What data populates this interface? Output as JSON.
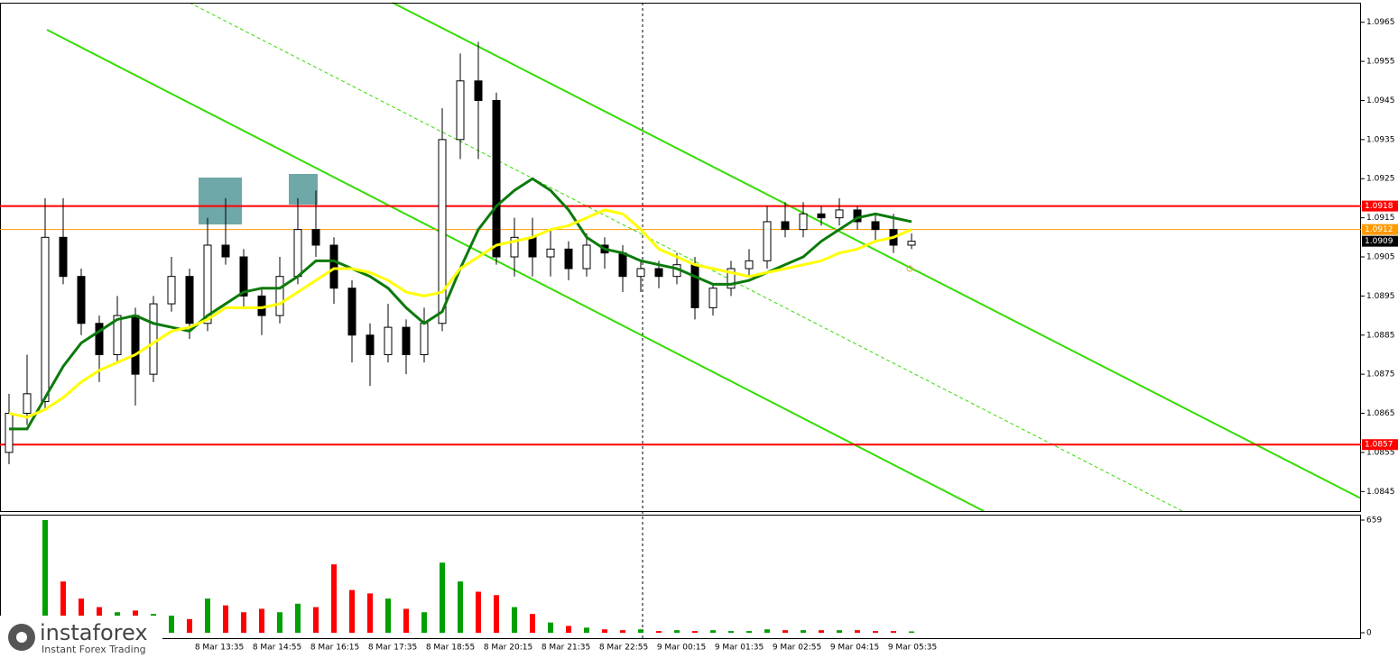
{
  "chart_data": {
    "type": "candlestick",
    "open": [
      1.0855,
      1.0865,
      1.0868,
      1.091,
      1.09,
      1.0888,
      1.088,
      1.089,
      1.0875,
      1.0893,
      1.09,
      1.0888,
      1.0908,
      1.0905,
      1.0895,
      1.089,
      1.09,
      1.0912,
      1.0908,
      1.0897,
      1.0885,
      1.088,
      1.0887,
      1.088,
      1.0888,
      1.0935,
      1.095,
      1.0945,
      1.0905,
      1.091,
      1.0905,
      1.0907,
      1.0902,
      1.0908,
      1.0906,
      1.09,
      1.0902,
      1.09,
      1.0903,
      1.0892,
      1.0897,
      1.0902,
      1.0904,
      1.0914,
      1.0912,
      1.0916,
      1.0915,
      1.0917,
      1.0914,
      1.0912,
      1.0908
    ],
    "high": [
      1.087,
      1.088,
      1.092,
      1.092,
      1.0902,
      1.089,
      1.0895,
      1.0892,
      1.0895,
      1.0905,
      1.0902,
      1.0915,
      1.092,
      1.0907,
      1.0897,
      1.0905,
      1.092,
      1.0922,
      1.091,
      1.0899,
      1.0888,
      1.0893,
      1.0889,
      1.0892,
      1.0943,
      1.0957,
      1.096,
      1.0947,
      1.0915,
      1.0915,
      1.0912,
      1.0909,
      1.0911,
      1.091,
      1.0908,
      1.0904,
      1.0904,
      1.0906,
      1.0905,
      1.0898,
      1.0904,
      1.0907,
      1.0918,
      1.0919,
      1.0919,
      1.0918,
      1.092,
      1.0918,
      1.0916,
      1.0916,
      1.0911
    ],
    "low": [
      1.0852,
      1.0862,
      1.0866,
      1.0898,
      1.0885,
      1.0873,
      1.0878,
      1.0867,
      1.0873,
      1.0891,
      1.0884,
      1.0886,
      1.0903,
      1.0892,
      1.0885,
      1.0888,
      1.0898,
      1.0905,
      1.0893,
      1.0878,
      1.0872,
      1.0878,
      1.0875,
      1.0878,
      1.0886,
      1.093,
      1.093,
      1.0903,
      1.09,
      1.09,
      1.09,
      1.0899,
      1.09,
      1.0902,
      1.0896,
      1.0896,
      1.0897,
      1.0898,
      1.0889,
      1.089,
      1.0895,
      1.09,
      1.0902,
      1.091,
      1.091,
      1.0913,
      1.0913,
      1.0912,
      1.0909,
      1.0906,
      1.0907
    ],
    "close": [
      1.0865,
      1.087,
      1.091,
      1.09,
      1.0888,
      1.088,
      1.089,
      1.0875,
      1.0893,
      1.09,
      1.0888,
      1.0908,
      1.0905,
      1.0895,
      1.089,
      1.09,
      1.0912,
      1.0908,
      1.0897,
      1.0885,
      1.088,
      1.0887,
      1.088,
      1.0888,
      1.0935,
      1.095,
      1.0945,
      1.0905,
      1.091,
      1.0905,
      1.0907,
      1.0902,
      1.0908,
      1.0906,
      1.09,
      1.0902,
      1.09,
      1.0903,
      1.0892,
      1.0897,
      1.0902,
      1.0904,
      1.0914,
      1.0912,
      1.0916,
      1.0915,
      1.0917,
      1.0914,
      1.0912,
      1.0908,
      1.0909
    ],
    "overlays": [
      {
        "color": "#0b7a0b",
        "values": [
          1.0861,
          1.0861,
          1.0869,
          1.0877,
          1.0883,
          1.0886,
          1.0889,
          1.089,
          1.0888,
          1.0887,
          1.0886,
          1.089,
          1.0893,
          1.0896,
          1.0897,
          1.0897,
          1.09,
          1.0904,
          1.0904,
          1.0902,
          1.09,
          1.0897,
          1.0892,
          1.0888,
          1.0891,
          1.0902,
          1.0912,
          1.0918,
          1.0922,
          1.0925,
          1.0922,
          1.0917,
          1.091,
          1.0907,
          1.0906,
          1.0904,
          1.0903,
          1.0902,
          1.09,
          1.0898,
          1.0898,
          1.0899,
          1.0901,
          1.0903,
          1.0905,
          1.0909,
          1.0912,
          1.0915,
          1.0916,
          1.0915,
          1.0914
        ]
      },
      {
        "color": "#ffff00",
        "values": [
          1.0865,
          1.0864,
          1.0866,
          1.0869,
          1.0873,
          1.0876,
          1.0878,
          1.088,
          1.0883,
          1.0886,
          1.0887,
          1.0889,
          1.0892,
          1.0892,
          1.0892,
          1.0893,
          1.0896,
          1.0899,
          1.0902,
          1.0902,
          1.0901,
          1.0899,
          1.0896,
          1.0895,
          1.0896,
          1.0902,
          1.0905,
          1.0908,
          1.0909,
          1.091,
          1.0912,
          1.0913,
          1.0915,
          1.0917,
          1.0916,
          1.0912,
          1.0907,
          1.0905,
          1.0903,
          1.0902,
          1.0901,
          1.09,
          1.0901,
          1.0902,
          1.0903,
          1.0904,
          1.0906,
          1.0907,
          1.0909,
          1.091,
          1.0912
        ]
      }
    ],
    "ylim": [
      1.084,
      1.097
    ],
    "yticks": [
      1.0965,
      1.0955,
      1.0945,
      1.0935,
      1.0925,
      1.0915,
      1.0905,
      1.0895,
      1.0885,
      1.0875,
      1.0865,
      1.0855,
      1.0845
    ],
    "levels": [
      {
        "value": 1.0918,
        "color": "#ff0000"
      },
      {
        "value": 1.0857,
        "color": "#ff0000"
      },
      {
        "value": 1.0912,
        "color": "#ff9900"
      }
    ],
    "last_price": 1.0909,
    "x_labels": [
      "8 Mar 13:35",
      "8 Mar 14:55",
      "8 Mar 16:15",
      "8 Mar 17:35",
      "8 Mar 18:55",
      "8 Mar 20:15",
      "8 Mar 21:35",
      "8 Mar 22:55",
      "9 Mar 00:15",
      "9 Mar 01:35",
      "9 Mar 02:55",
      "9 Mar 04:15",
      "9 Mar 05:35"
    ],
    "volume": {
      "values": [
        60,
        90,
        659,
        300,
        200,
        150,
        120,
        130,
        110,
        100,
        80,
        200,
        160,
        120,
        140,
        120,
        170,
        150,
        400,
        250,
        230,
        200,
        140,
        120,
        410,
        300,
        240,
        220,
        150,
        110,
        60,
        40,
        30,
        20,
        15,
        20,
        10,
        15,
        10,
        15,
        10,
        10,
        20,
        15,
        15,
        15,
        15,
        15,
        10,
        10,
        8
      ],
      "ylim": [
        0,
        659
      ],
      "yticks": [
        659,
        0
      ]
    }
  },
  "logo": {
    "name": "instaforex",
    "tagline": "Instant Forex Trading"
  }
}
